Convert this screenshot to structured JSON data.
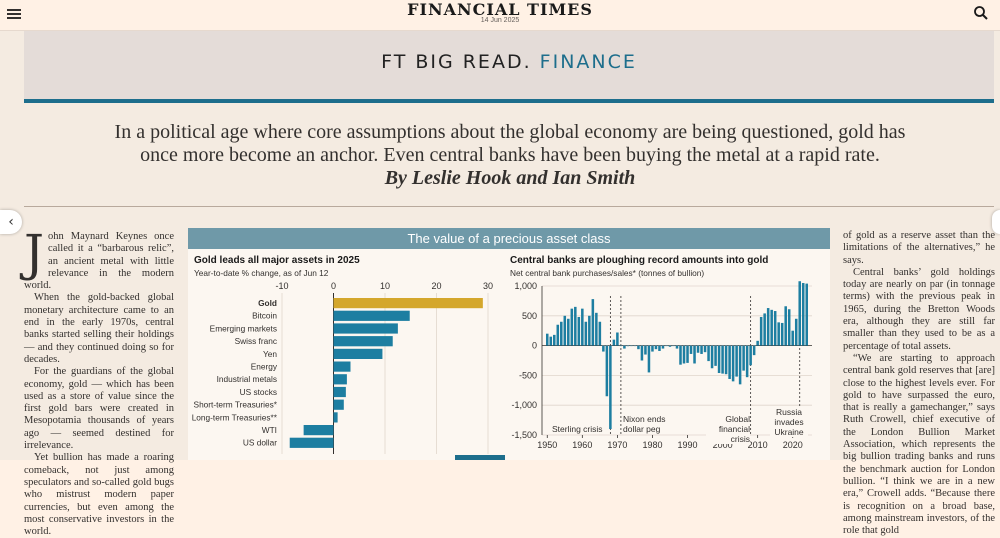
{
  "header": {
    "masthead": "FINANCIAL TIMES",
    "date": "14 Jun 2025"
  },
  "banner": {
    "prefix": "FT BIG READ.",
    "section": "FINANCE",
    "rule_color": "#1d6e8c"
  },
  "article": {
    "standfirst_line1": "In a political age where core assumptions about the global economy are being questioned, gold has",
    "standfirst_line2": "once more become an anchor. Even central banks have been buying the metal at a rapid rate.",
    "byline": "By Leslie Hook and Ian Smith",
    "col1": {
      "dropcap": "J",
      "p1": "ohn Maynard Keynes once called it a “barbarous relic”, an ancient metal with little relevance in the modern world.",
      "p2": "When the gold-backed global monetary architecture came to an end in the early 1970s, central banks started selling their holdings — and they continued doing so for decades.",
      "p3": "For the guardians of the global economy, gold — which has been used as a store of value since the first gold bars were created in Mesopotamia thousands of years ago — seemed destined for irrelevance.",
      "p4": "Yet bullion has made a roaring comeback, not just among speculators and so-called gold bugs who mistrust modern paper currencies, but even among the most conservative investors in the world."
    },
    "col3": {
      "p1": "of gold as a reserve asset than the limitations of the alternatives,” he says.",
      "p2": "Central banks’ gold holdings today are nearly on par (in tonnage terms) with the previous peak in 1965, during the Bretton Woods era, although they are still far smaller than they used to be as a percentage of total assets.",
      "p3": "“We are starting to approach central bank gold reserves that [are] close to the highest levels ever. For gold to have surpassed the euro, that is really a gamechanger,” says Ruth Crowell, chief executive of the London Bullion Market Association, which represents the big bullion trading banks and runs the benchmark auction for London bullion. “I think we are in a new era,” Crowell adds. “Because there is recognition on a broad base, among mainstream investors, of the role that gold"
    }
  },
  "infographic": {
    "header": "The value of a precious asset class"
  },
  "chart_data": [
    {
      "type": "bar",
      "orientation": "horizontal",
      "title": "Gold leads all major assets in 2025",
      "subtitle": "Year-to-date % change, as of Jun 12",
      "categories": [
        "Gold",
        "Bitcoin",
        "Emerging markets",
        "Swiss franc",
        "Yen",
        "Energy",
        "Industrial metals",
        "US stocks",
        "Short-term Treasuries*",
        "Long-term Treasuries**",
        "WTI",
        "US dollar"
      ],
      "values": [
        29,
        14.8,
        12.5,
        11.5,
        9.5,
        3.3,
        2.6,
        2.4,
        2.0,
        0.8,
        -5.8,
        -8.5
      ],
      "highlight": "Gold",
      "highlight_color": "#d4a72c",
      "bar_color": "#1d7ea1",
      "xlim": [
        -10,
        30
      ],
      "xticks": [
        -10,
        0,
        10,
        20,
        30
      ]
    },
    {
      "type": "bar",
      "title": "Central banks are ploughing record amounts into gold",
      "subtitle": "Net central bank purchases/sales* (tonnes of bullion)",
      "x": [
        1950,
        1951,
        1952,
        1953,
        1954,
        1955,
        1956,
        1957,
        1958,
        1959,
        1960,
        1961,
        1962,
        1963,
        1964,
        1965,
        1966,
        1967,
        1968,
        1969,
        1970,
        1971,
        1972,
        1973,
        1974,
        1975,
        1976,
        1977,
        1978,
        1979,
        1980,
        1981,
        1982,
        1983,
        1984,
        1985,
        1986,
        1987,
        1988,
        1989,
        1990,
        1991,
        1992,
        1993,
        1994,
        1995,
        1996,
        1997,
        1998,
        1999,
        2000,
        2001,
        2002,
        2003,
        2004,
        2005,
        2006,
        2007,
        2008,
        2009,
        2010,
        2011,
        2012,
        2013,
        2014,
        2015,
        2016,
        2017,
        2018,
        2019,
        2020,
        2021,
        2022,
        2023,
        2024
      ],
      "values": [
        200,
        150,
        180,
        350,
        400,
        500,
        450,
        620,
        650,
        480,
        620,
        400,
        500,
        780,
        550,
        400,
        -100,
        -850,
        -1400,
        100,
        220,
        0,
        -50,
        -10,
        0,
        0,
        -60,
        -250,
        -150,
        -450,
        -100,
        -60,
        -90,
        -50,
        -5,
        -20,
        0,
        -50,
        -320,
        -300,
        -290,
        -140,
        -300,
        -120,
        -140,
        -110,
        -260,
        -380,
        -340,
        -460,
        -470,
        -480,
        -560,
        -600,
        -520,
        -650,
        -420,
        -530,
        -330,
        -160,
        80,
        480,
        540,
        630,
        600,
        580,
        390,
        380,
        660,
        610,
        250,
        450,
        1080,
        1050,
        1040
      ],
      "bar_color": "#1d7ea1",
      "ylim": [
        -1500,
        1000
      ],
      "yticks": [
        1000,
        500,
        0,
        -500,
        -1000,
        -1500
      ],
      "yticklabels": [
        "1,000",
        "500",
        "0",
        "-500",
        "-1,000",
        "-1,500"
      ],
      "xticks": [
        1950,
        1960,
        1970,
        1980,
        1990,
        2000,
        2010,
        2020
      ],
      "annotations": [
        {
          "text": "Sterling crisis",
          "year": 1968
        },
        {
          "text": "Nixon ends dollar peg",
          "year": 1971
        },
        {
          "text": "Global financial crisis",
          "year": 2008
        },
        {
          "text": "Russia invades Ukraine",
          "year": 2022
        }
      ]
    }
  ]
}
